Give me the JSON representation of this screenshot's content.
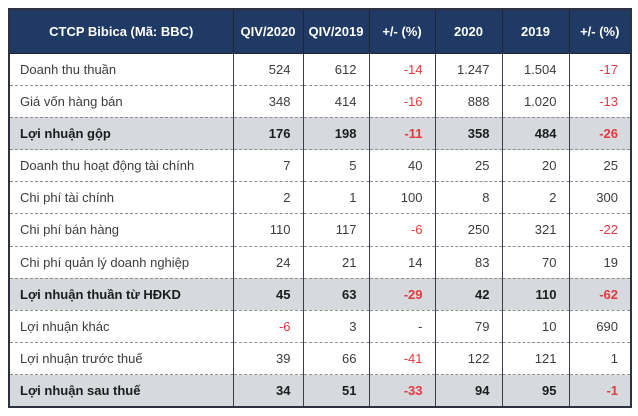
{
  "colors": {
    "header_bg": "#1f3a64",
    "header_text": "#ffffff",
    "highlight_row_bg": "#d6d9de",
    "negative_value": "#e23a3e",
    "body_text": "#3c3c3c"
  },
  "chart_data": {
    "type": "table",
    "title": "CTCP Bibica (Mã: BBC)",
    "columns": [
      "CTCP Bibica (Mã: BBC)",
      "QIV/2020",
      "QIV/2019",
      "+/- (%)",
      "2020",
      "2019",
      "+/- (%)"
    ],
    "rows": [
      {
        "label": "Doanh thu thuần",
        "values": [
          "524",
          "612",
          "-14",
          "1.247",
          "1.504",
          "-17"
        ],
        "bold": false
      },
      {
        "label": "Giá vốn hàng bán",
        "values": [
          "348",
          "414",
          "-16",
          "888",
          "1.020",
          "-13"
        ],
        "bold": false
      },
      {
        "label": "Lợi nhuận gộp",
        "values": [
          "176",
          "198",
          "-11",
          "358",
          "484",
          "-26"
        ],
        "bold": true
      },
      {
        "label": "Doanh thu hoạt động tài chính",
        "values": [
          "7",
          "5",
          "40",
          "25",
          "20",
          "25"
        ],
        "bold": false
      },
      {
        "label": "Chi phí tài chính",
        "values": [
          "2",
          "1",
          "100",
          "8",
          "2",
          "300"
        ],
        "bold": false
      },
      {
        "label": "Chi phí bán hàng",
        "values": [
          "110",
          "117",
          "-6",
          "250",
          "321",
          "-22"
        ],
        "bold": false
      },
      {
        "label": "Chi phí quản lý doanh nghiệp",
        "values": [
          "24",
          "21",
          "14",
          "83",
          "70",
          "19"
        ],
        "bold": false
      },
      {
        "label": "Lợi nhuận thuần từ HĐKD",
        "values": [
          "45",
          "63",
          "-29",
          "42",
          "110",
          "-62"
        ],
        "bold": true
      },
      {
        "label": "Lợi nhuận khác",
        "values": [
          "-6",
          "3",
          "-",
          "79",
          "10",
          "690"
        ],
        "bold": false
      },
      {
        "label": "Lợi nhuận trước thuế",
        "values": [
          "39",
          "66",
          "-41",
          "122",
          "121",
          "1"
        ],
        "bold": false
      },
      {
        "label": "Lợi nhuận sau thuế",
        "values": [
          "34",
          "51",
          "-33",
          "94",
          "95",
          "-1"
        ],
        "bold": true
      }
    ]
  }
}
